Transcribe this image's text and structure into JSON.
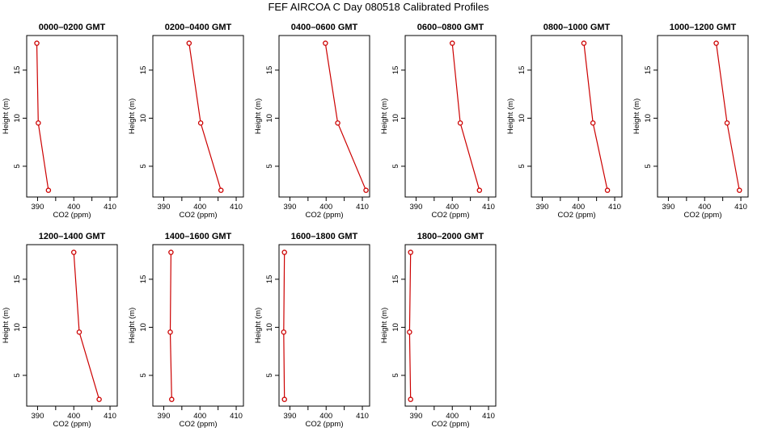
{
  "title": "FEF AIRCOA C  Day 080518  Calibrated Profiles",
  "colors": {
    "line": "#cc0000",
    "point": "#cc0000",
    "axis": "#000000"
  },
  "chart_data": [
    {
      "type": "line",
      "title": "0000–0200 GMT",
      "xlabel": "CO2 (ppm)",
      "ylabel": "Height (m)",
      "xlim": [
        387,
        412
      ],
      "ylim": [
        1.8,
        18.6
      ],
      "xticks": [
        "390",
        "400",
        "410"
      ],
      "yticks": [
        "5",
        "10",
        "15"
      ],
      "series": [
        {
          "x": [
            389.8,
            390.2,
            393.0
          ],
          "y": [
            17.8,
            9.5,
            2.5
          ]
        }
      ]
    },
    {
      "type": "line",
      "title": "0200–0400 GMT",
      "xlabel": "CO2 (ppm)",
      "ylabel": "Height (m)",
      "xlim": [
        387,
        412
      ],
      "ylim": [
        1.8,
        18.6
      ],
      "xticks": [
        "390",
        "400",
        "410"
      ],
      "yticks": [
        "5",
        "10",
        "15"
      ],
      "series": [
        {
          "x": [
            397.0,
            400.2,
            405.8
          ],
          "y": [
            17.8,
            9.5,
            2.5
          ]
        }
      ]
    },
    {
      "type": "line",
      "title": "0400–0600 GMT",
      "xlabel": "CO2 (ppm)",
      "ylabel": "Height (m)",
      "xlim": [
        387,
        412
      ],
      "ylim": [
        1.8,
        18.6
      ],
      "xticks": [
        "390",
        "400",
        "410"
      ],
      "yticks": [
        "5",
        "10",
        "15"
      ],
      "series": [
        {
          "x": [
            399.8,
            403.2,
            411.0
          ],
          "y": [
            17.8,
            9.5,
            2.5
          ]
        }
      ]
    },
    {
      "type": "line",
      "title": "0600–0800 GMT",
      "xlabel": "CO2 (ppm)",
      "ylabel": "Height (m)",
      "xlim": [
        387,
        412
      ],
      "ylim": [
        1.8,
        18.6
      ],
      "xticks": [
        "390",
        "400",
        "410"
      ],
      "yticks": [
        "5",
        "10",
        "15"
      ],
      "series": [
        {
          "x": [
            400.0,
            402.2,
            407.5
          ],
          "y": [
            17.8,
            9.5,
            2.5
          ]
        }
      ]
    },
    {
      "type": "line",
      "title": "0800–1000 GMT",
      "xlabel": "CO2 (ppm)",
      "ylabel": "Height (m)",
      "xlim": [
        387,
        412
      ],
      "ylim": [
        1.8,
        18.6
      ],
      "xticks": [
        "390",
        "400",
        "410"
      ],
      "yticks": [
        "5",
        "10",
        "15"
      ],
      "series": [
        {
          "x": [
            401.5,
            404.0,
            408.0
          ],
          "y": [
            17.8,
            9.5,
            2.5
          ]
        }
      ]
    },
    {
      "type": "line",
      "title": "1000–1200 GMT",
      "xlabel": "CO2 (ppm)",
      "ylabel": "Height (m)",
      "xlim": [
        387,
        412
      ],
      "ylim": [
        1.8,
        18.6
      ],
      "xticks": [
        "390",
        "400",
        "410"
      ],
      "yticks": [
        "5",
        "10",
        "15"
      ],
      "series": [
        {
          "x": [
            403.2,
            406.2,
            409.6
          ],
          "y": [
            17.8,
            9.5,
            2.5
          ]
        }
      ]
    },
    {
      "type": "line",
      "title": "1200–1400 GMT",
      "xlabel": "CO2 (ppm)",
      "ylabel": "Height (m)",
      "xlim": [
        387,
        412
      ],
      "ylim": [
        1.8,
        18.6
      ],
      "xticks": [
        "390",
        "400",
        "410"
      ],
      "yticks": [
        "5",
        "10",
        "15"
      ],
      "series": [
        {
          "x": [
            400.0,
            401.5,
            407.0
          ],
          "y": [
            17.8,
            9.5,
            2.5
          ]
        }
      ]
    },
    {
      "type": "line",
      "title": "1400–1600 GMT",
      "xlabel": "CO2 (ppm)",
      "ylabel": "Height (m)",
      "xlim": [
        387,
        412
      ],
      "ylim": [
        1.8,
        18.6
      ],
      "xticks": [
        "390",
        "400",
        "410"
      ],
      "yticks": [
        "5",
        "10",
        "15"
      ],
      "series": [
        {
          "x": [
            392.0,
            391.8,
            392.2
          ],
          "y": [
            17.8,
            9.5,
            2.5
          ]
        }
      ]
    },
    {
      "type": "line",
      "title": "1600–1800 GMT",
      "xlabel": "CO2 (ppm)",
      "ylabel": "Height (m)",
      "xlim": [
        387,
        412
      ],
      "ylim": [
        1.8,
        18.6
      ],
      "xticks": [
        "390",
        "400",
        "410"
      ],
      "yticks": [
        "5",
        "10",
        "15"
      ],
      "series": [
        {
          "x": [
            388.5,
            388.3,
            388.5
          ],
          "y": [
            17.8,
            9.5,
            2.5
          ]
        }
      ]
    },
    {
      "type": "line",
      "title": "1800–2000 GMT",
      "xlabel": "CO2 (ppm)",
      "ylabel": "Height (m)",
      "xlim": [
        387,
        412
      ],
      "ylim": [
        1.8,
        18.6
      ],
      "xticks": [
        "390",
        "400",
        "410"
      ],
      "yticks": [
        "5",
        "10",
        "15"
      ],
      "series": [
        {
          "x": [
            388.5,
            388.2,
            388.5
          ],
          "y": [
            17.8,
            9.5,
            2.5
          ]
        }
      ]
    }
  ]
}
